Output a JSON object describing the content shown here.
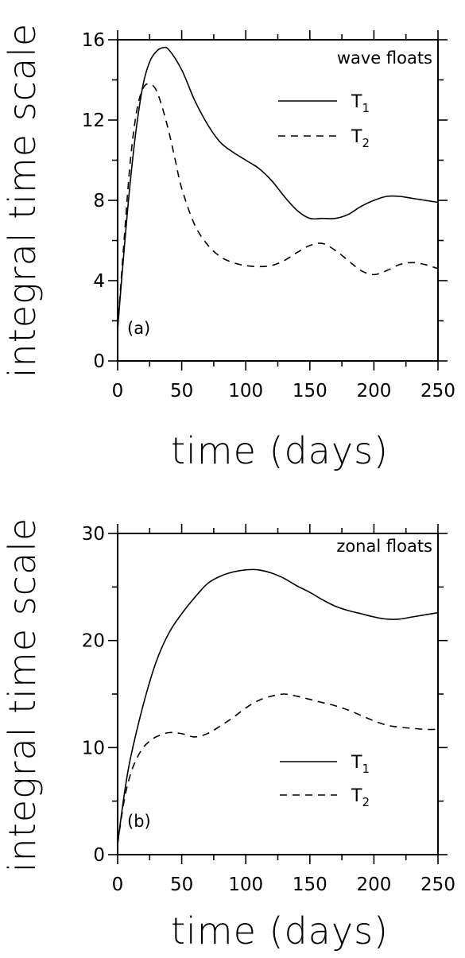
{
  "chart_data": [
    {
      "type": "line",
      "panel_label": "(a)",
      "annotation": "wave floats",
      "xlabel": "time (days)",
      "ylabel": "integral time scale",
      "xlim": [
        0,
        250
      ],
      "ylim": [
        0,
        16
      ],
      "xticks": [
        0,
        50,
        100,
        150,
        200,
        250
      ],
      "yticks": [
        0,
        4,
        8,
        12,
        16
      ],
      "legend": {
        "placement": "top-right"
      },
      "series": [
        {
          "name": "T",
          "subscript": "1",
          "dash": "solid",
          "x": [
            0,
            5,
            10,
            15,
            20,
            25,
            30,
            35,
            40,
            50,
            60,
            70,
            80,
            90,
            100,
            110,
            120,
            130,
            140,
            150,
            160,
            170,
            180,
            190,
            200,
            210,
            220,
            230,
            240,
            250
          ],
          "y": [
            1.6,
            5.5,
            9.0,
            11.8,
            13.8,
            14.9,
            15.4,
            15.6,
            15.5,
            14.5,
            13.0,
            11.8,
            10.9,
            10.4,
            10.0,
            9.6,
            9.0,
            8.2,
            7.5,
            7.1,
            7.1,
            7.1,
            7.3,
            7.7,
            8.0,
            8.2,
            8.2,
            8.1,
            8.0,
            7.9
          ]
        },
        {
          "name": "T",
          "subscript": "2",
          "dash": "dashed",
          "x": [
            0,
            5,
            10,
            15,
            20,
            25,
            30,
            35,
            40,
            45,
            50,
            60,
            70,
            80,
            90,
            100,
            110,
            120,
            130,
            140,
            150,
            160,
            170,
            180,
            190,
            200,
            210,
            220,
            230,
            240,
            250
          ],
          "y": [
            1.6,
            6.0,
            10.0,
            12.5,
            13.6,
            13.8,
            13.5,
            12.6,
            11.4,
            10.0,
            8.6,
            6.8,
            5.8,
            5.2,
            4.9,
            4.75,
            4.7,
            4.75,
            5.0,
            5.4,
            5.75,
            5.85,
            5.5,
            5.0,
            4.5,
            4.3,
            4.5,
            4.8,
            4.9,
            4.8,
            4.6
          ]
        }
      ]
    },
    {
      "type": "line",
      "panel_label": "(b)",
      "annotation": "zonal floats",
      "xlabel": "time (days)",
      "ylabel": "integral time scale",
      "xlim": [
        0,
        250
      ],
      "ylim": [
        0,
        30
      ],
      "xticks": [
        0,
        50,
        100,
        150,
        200,
        250
      ],
      "yticks": [
        0,
        10,
        20,
        30
      ],
      "legend": {
        "placement": "bottom-right"
      },
      "series": [
        {
          "name": "T",
          "subscript": "1",
          "dash": "solid",
          "x": [
            0,
            5,
            10,
            20,
            30,
            40,
            50,
            60,
            70,
            80,
            90,
            100,
            110,
            120,
            130,
            140,
            150,
            160,
            170,
            180,
            190,
            200,
            210,
            220,
            230,
            240,
            250
          ],
          "y": [
            1.0,
            5.5,
            9.0,
            14.0,
            18.0,
            20.7,
            22.5,
            24.0,
            25.3,
            26.0,
            26.4,
            26.6,
            26.6,
            26.3,
            25.8,
            25.1,
            24.5,
            23.8,
            23.2,
            22.8,
            22.5,
            22.2,
            22.0,
            22.0,
            22.2,
            22.4,
            22.6
          ]
        },
        {
          "name": "T",
          "subscript": "2",
          "dash": "dashed",
          "x": [
            0,
            5,
            10,
            15,
            20,
            25,
            30,
            40,
            50,
            60,
            70,
            80,
            90,
            100,
            110,
            120,
            130,
            140,
            150,
            160,
            170,
            180,
            190,
            200,
            210,
            220,
            230,
            240,
            250
          ],
          "y": [
            1.0,
            5.0,
            7.5,
            9.0,
            10.0,
            10.6,
            11.0,
            11.4,
            11.3,
            11.0,
            11.3,
            12.0,
            12.8,
            13.7,
            14.4,
            14.8,
            15.0,
            14.8,
            14.5,
            14.2,
            13.9,
            13.5,
            13.0,
            12.5,
            12.1,
            11.9,
            11.8,
            11.7,
            11.7
          ]
        }
      ]
    }
  ]
}
